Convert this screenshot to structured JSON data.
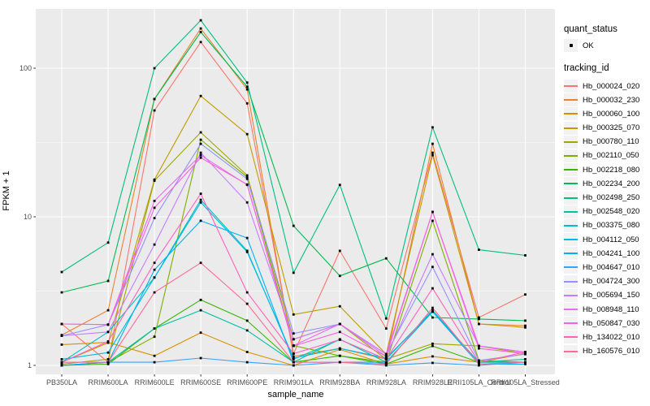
{
  "figure": {
    "background": "#ffffff",
    "panel_background": "#EBEBEB",
    "grid_color": "#FFFFFF",
    "tick_color": "#333333",
    "tick_label_color": "#4D4D4D",
    "point_color": "#000000"
  },
  "axes": {
    "x_title": "sample_name",
    "y_title": "FPKM + 1"
  },
  "legend": {
    "quant_status_title": "quant_status",
    "quant_status_ok_label": "OK",
    "tracking_id_title": "tracking_id"
  },
  "chart_data": {
    "type": "line",
    "title": "",
    "xlabel": "sample_name",
    "ylabel": "FPKM + 1",
    "y_scale": "log10",
    "y_ticks": [
      1,
      10,
      100
    ],
    "y_tick_labels": [
      "1",
      "10",
      "100"
    ],
    "y_minor_ticks": [
      3.162,
      31.62
    ],
    "ylim": [
      0.87,
      265
    ],
    "grid": true,
    "legend_position": "right",
    "marker": "black-square",
    "categories": [
      "PB350LA",
      "RRIM600LA",
      "RRIM600LE",
      "RRIM600SE",
      "RRIM600PE",
      "RRIM901LA",
      "RRIM928BA",
      "RRIM928LA",
      "RRIM928LE",
      "RRII105LA_Control",
      "RRII105LA_Stressed"
    ],
    "series": [
      {
        "name": "Hb_000024_020",
        "color": "#F8766D",
        "quant_status": "OK",
        "values": [
          1.9,
          1.05,
          52,
          150,
          58,
          1.2,
          5.9,
          1.77,
          27,
          2.1,
          3.0
        ]
      },
      {
        "name": "Hb_000032_230",
        "color": "#EA8331",
        "quant_status": "OK",
        "values": [
          1.6,
          2.35,
          62,
          185,
          72,
          1.15,
          1.3,
          1.1,
          31,
          1.9,
          1.85
        ]
      },
      {
        "name": "Hb_000060_100",
        "color": "#D89000",
        "quant_status": "OK",
        "values": [
          1.38,
          1.43,
          1.16,
          1.66,
          1.23,
          1.0,
          1.28,
          1.02,
          1.15,
          1.05,
          1.2
        ]
      },
      {
        "name": "Hb_000325_070",
        "color": "#C09B00",
        "quant_status": "OK",
        "values": [
          1.05,
          1.42,
          17.8,
          65,
          36,
          2.2,
          2.5,
          1.19,
          26,
          1.9,
          1.8
        ]
      },
      {
        "name": "Hb_000780_110",
        "color": "#A3A500",
        "quant_status": "OK",
        "values": [
          1.02,
          1.1,
          17.5,
          37,
          19,
          1.5,
          1.9,
          1.1,
          1.4,
          1.35,
          1.2
        ]
      },
      {
        "name": "Hb_002110_050",
        "color": "#7CAE00",
        "quant_status": "OK",
        "values": [
          1.0,
          1.05,
          1.56,
          33,
          18.5,
          1.36,
          1.16,
          1.05,
          9.4,
          1.08,
          1.05
        ]
      },
      {
        "name": "Hb_002218_080",
        "color": "#39B600",
        "quant_status": "OK",
        "values": [
          1.0,
          1.02,
          1.77,
          2.76,
          2.0,
          1.05,
          1.16,
          1.02,
          1.35,
          1.05,
          1.05
        ]
      },
      {
        "name": "Hb_002234_200",
        "color": "#00BB4E",
        "quant_status": "OK",
        "values": [
          3.1,
          3.7,
          62,
          175,
          75,
          8.7,
          4.0,
          5.25,
          2.1,
          2.05,
          2.0
        ]
      },
      {
        "name": "Hb_002498_250",
        "color": "#00BF7D",
        "quant_status": "OK",
        "values": [
          4.25,
          6.7,
          100,
          210,
          80,
          4.2,
          16.4,
          2.07,
          40,
          6.0,
          5.5
        ]
      },
      {
        "name": "Hb_002548_020",
        "color": "#00C1A3",
        "quant_status": "OK",
        "values": [
          1.0,
          1.05,
          1.77,
          2.35,
          1.72,
          1.05,
          1.5,
          1.05,
          2.3,
          1.05,
          1.1
        ]
      },
      {
        "name": "Hb_003375_080",
        "color": "#00BFC4",
        "quant_status": "OK",
        "values": [
          1.05,
          1.68,
          3.9,
          13,
          5.9,
          1.1,
          1.49,
          1.1,
          2.35,
          1.05,
          1.05
        ]
      },
      {
        "name": "Hb_004112_050",
        "color": "#00BAE0",
        "quant_status": "OK",
        "values": [
          1.1,
          1.22,
          3.9,
          12.5,
          5.8,
          1.12,
          1.3,
          1.12,
          2.3,
          1.02,
          1.05
        ]
      },
      {
        "name": "Hb_004241_100",
        "color": "#00B0F6",
        "quant_status": "OK",
        "values": [
          1.0,
          1.05,
          4.4,
          9.4,
          7.2,
          1.05,
          1.05,
          1.05,
          2.3,
          1.02,
          1.02
        ]
      },
      {
        "name": "Hb_004647_010",
        "color": "#35A2FF",
        "quant_status": "OK",
        "values": [
          1.05,
          1.05,
          1.05,
          1.12,
          1.05,
          1.0,
          1.05,
          1.0,
          1.04,
          1.0,
          1.05
        ]
      },
      {
        "name": "Hb_004724_300",
        "color": "#9590FF",
        "quant_status": "OK",
        "values": [
          1.58,
          1.88,
          9.8,
          31,
          18,
          1.64,
          1.9,
          1.19,
          4.6,
          1.08,
          1.19
        ]
      },
      {
        "name": "Hb_005694_150",
        "color": "#C77CFF",
        "quant_status": "OK",
        "values": [
          1.58,
          1.68,
          6.5,
          27,
          12.5,
          1.5,
          1.9,
          1.15,
          5.6,
          1.35,
          1.23
        ]
      },
      {
        "name": "Hb_008948_110",
        "color": "#E76BF3",
        "quant_status": "OK",
        "values": [
          1.9,
          1.88,
          12.8,
          26,
          16.4,
          1.36,
          1.9,
          1.19,
          10.8,
          1.35,
          1.23
        ]
      },
      {
        "name": "Hb_050847_030",
        "color": "#FA62DB",
        "quant_status": "OK",
        "values": [
          1.9,
          1.88,
          11.5,
          25,
          16.5,
          1.35,
          1.68,
          1.15,
          10.8,
          1.3,
          1.2
        ]
      },
      {
        "name": "Hb_134022_010",
        "color": "#FF62BC",
        "quant_status": "OK",
        "values": [
          1.05,
          1.45,
          4.9,
          14.3,
          3.1,
          1.2,
          1.49,
          1.1,
          3.3,
          1.05,
          1.23
        ]
      },
      {
        "name": "Hb_160576_010",
        "color": "#FF6A98",
        "quant_status": "OK",
        "values": [
          1.05,
          1.05,
          3.1,
          4.9,
          2.6,
          1.05,
          1.05,
          1.02,
          2.44,
          1.02,
          1.05
        ]
      }
    ]
  }
}
